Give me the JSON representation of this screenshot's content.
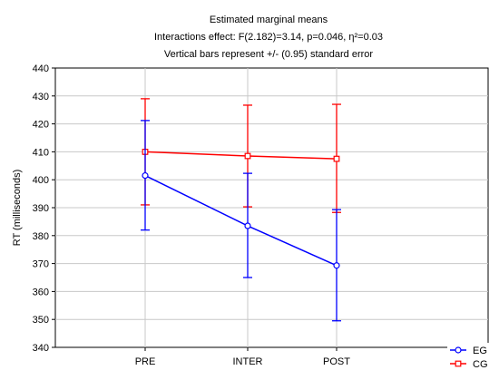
{
  "chart_data": {
    "type": "line",
    "title": "Estimated marginal means",
    "subtitle": "Interactions effect: F(2.182)=3.14, p=0.046, η²=0.03",
    "note": "Vertical bars represent +/- (0.95) standard error",
    "xlabel": "",
    "ylabel": "RT (milliseconds)",
    "categories": [
      "PRE",
      "INTER",
      "POST"
    ],
    "ylim": [
      340,
      440
    ],
    "yticks": [
      340,
      350,
      360,
      370,
      380,
      390,
      400,
      410,
      420,
      430,
      440
    ],
    "grid": true,
    "legend_position": "bottom-right",
    "series": [
      {
        "name": "EG",
        "color": "#0000ff",
        "marker": "circle",
        "values": [
          401.5,
          383.5,
          369.3
        ],
        "err_low": [
          382.0,
          365.0,
          349.5
        ],
        "err_high": [
          421.2,
          402.3,
          389.3
        ]
      },
      {
        "name": "CG",
        "color": "#ff0000",
        "marker": "square",
        "values": [
          410.0,
          408.5,
          407.5
        ],
        "err_low": [
          391.0,
          390.3,
          388.3
        ],
        "err_high": [
          429.0,
          426.7,
          427.0
        ]
      }
    ]
  }
}
